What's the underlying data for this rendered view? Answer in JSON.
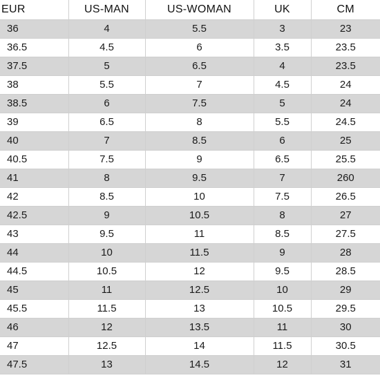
{
  "table": {
    "headers": [
      "EUR",
      "US-MAN",
      "US-WOMAN",
      "UK",
      "CM"
    ],
    "rows": [
      [
        "36",
        "4",
        "5.5",
        "3",
        "23"
      ],
      [
        "36.5",
        "4.5",
        "6",
        "3.5",
        "23.5"
      ],
      [
        "37.5",
        "5",
        "6.5",
        "4",
        "23.5"
      ],
      [
        "38",
        "5.5",
        "7",
        "4.5",
        "24"
      ],
      [
        "38.5",
        "6",
        "7.5",
        "5",
        "24"
      ],
      [
        "39",
        "6.5",
        "8",
        "5.5",
        "24.5"
      ],
      [
        "40",
        "7",
        "8.5",
        "6",
        "25"
      ],
      [
        "40.5",
        "7.5",
        "9",
        "6.5",
        "25.5"
      ],
      [
        "41",
        "8",
        "9.5",
        "7",
        "260"
      ],
      [
        "42",
        "8.5",
        "10",
        "7.5",
        "26.5"
      ],
      [
        "42.5",
        "9",
        "10.5",
        "8",
        "27"
      ],
      [
        "43",
        "9.5",
        "11",
        "8.5",
        "27.5"
      ],
      [
        "44",
        "10",
        "11.5",
        "9",
        "28"
      ],
      [
        "44.5",
        "10.5",
        "12",
        "9.5",
        "28.5"
      ],
      [
        "45",
        "11",
        "12.5",
        "10",
        "29"
      ],
      [
        "45.5",
        "11.5",
        "13",
        "10.5",
        "29.5"
      ],
      [
        "46",
        "12",
        "13.5",
        "11",
        "30"
      ],
      [
        "47",
        "12.5",
        "14",
        "11.5",
        "30.5"
      ],
      [
        "47.5",
        "13",
        "14.5",
        "12",
        "31"
      ]
    ]
  },
  "colors": {
    "stripe": "#d6d6d6",
    "background": "#ffffff",
    "grid": "#cfcfcf",
    "text": "#1a1a1a"
  }
}
